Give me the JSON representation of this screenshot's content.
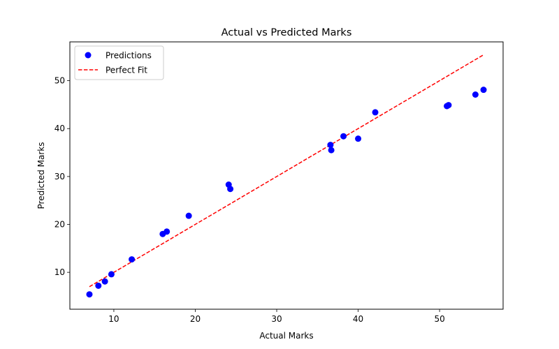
{
  "chart_data": {
    "type": "scatter",
    "title": "Actual vs Predicted Marks",
    "xlabel": "Actual Marks",
    "ylabel": "Predicted Marks",
    "xlim": [
      4.6,
      57.8
    ],
    "ylim": [
      2.3,
      58.1
    ],
    "xticks": [
      10,
      20,
      30,
      40,
      50
    ],
    "yticks": [
      10,
      20,
      30,
      40,
      50
    ],
    "grid": false,
    "legend": {
      "placement": "top-left",
      "entries": [
        "Predictions",
        "Perfect Fit"
      ]
    },
    "series": [
      {
        "name": "Predictions",
        "kind": "scatter",
        "color": "#0000ff",
        "points": [
          [
            7.0,
            5.4
          ],
          [
            8.1,
            7.2
          ],
          [
            8.9,
            8.1
          ],
          [
            9.7,
            9.6
          ],
          [
            12.2,
            12.7
          ],
          [
            16.0,
            18.0
          ],
          [
            16.5,
            18.5
          ],
          [
            19.2,
            21.8
          ],
          [
            24.1,
            28.3
          ],
          [
            24.3,
            27.4
          ],
          [
            36.6,
            36.6
          ],
          [
            36.7,
            35.5
          ],
          [
            38.2,
            38.4
          ],
          [
            40.0,
            37.9
          ],
          [
            42.1,
            43.4
          ],
          [
            50.9,
            44.7
          ],
          [
            51.1,
            44.9
          ],
          [
            54.4,
            47.1
          ],
          [
            55.4,
            48.1
          ]
        ]
      },
      {
        "name": "Perfect Fit",
        "kind": "line",
        "style": "dashed",
        "color": "#ff0000",
        "points": [
          [
            7.0,
            7.0
          ],
          [
            55.4,
            55.4
          ]
        ]
      }
    ]
  }
}
